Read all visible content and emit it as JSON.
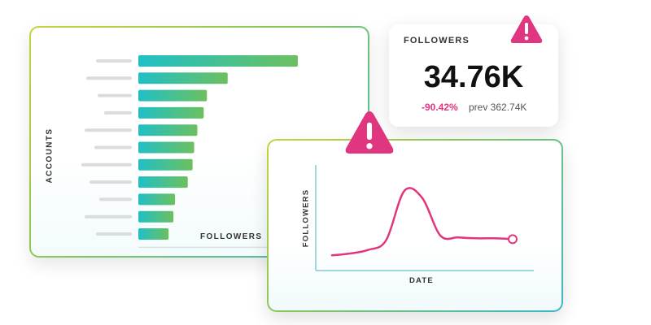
{
  "bar_chart": {
    "y_axis_title": "ACCOUNTS",
    "x_axis_title": "FOLLOWERS",
    "bar_gradient": [
      "#20bfc7",
      "#6cc05e"
    ],
    "placeholder_color": "#dcdcdc"
  },
  "stat_card": {
    "label": "FOLLOWERS",
    "value": "34.76K",
    "change": "-90.42%",
    "previous": "prev 362.74K",
    "change_color": "#e0357f",
    "warning_icon": "warning-triangle-icon"
  },
  "line_chart": {
    "y_axis_title": "FOLLOWERS",
    "x_axis_title": "DATE",
    "line_color": "#e0357f",
    "axis_color": "#7fcbd6",
    "warning_icon": "warning-triangle-icon"
  },
  "chart_data": [
    {
      "type": "bar",
      "orientation": "horizontal",
      "xlabel": "FOLLOWERS",
      "ylabel": "ACCOUNTS",
      "values": [
        100,
        56,
        43,
        41,
        37,
        35,
        34,
        31,
        23,
        22,
        19
      ],
      "grid": false
    },
    {
      "type": "line",
      "xlabel": "DATE",
      "ylabel": "FOLLOWERS",
      "x": [
        0,
        1,
        2,
        3,
        4,
        5,
        6,
        7,
        8,
        9,
        10
      ],
      "y": [
        8,
        10,
        14,
        25,
        80,
        72,
        30,
        28,
        27,
        27,
        26
      ],
      "grid": false
    }
  ]
}
